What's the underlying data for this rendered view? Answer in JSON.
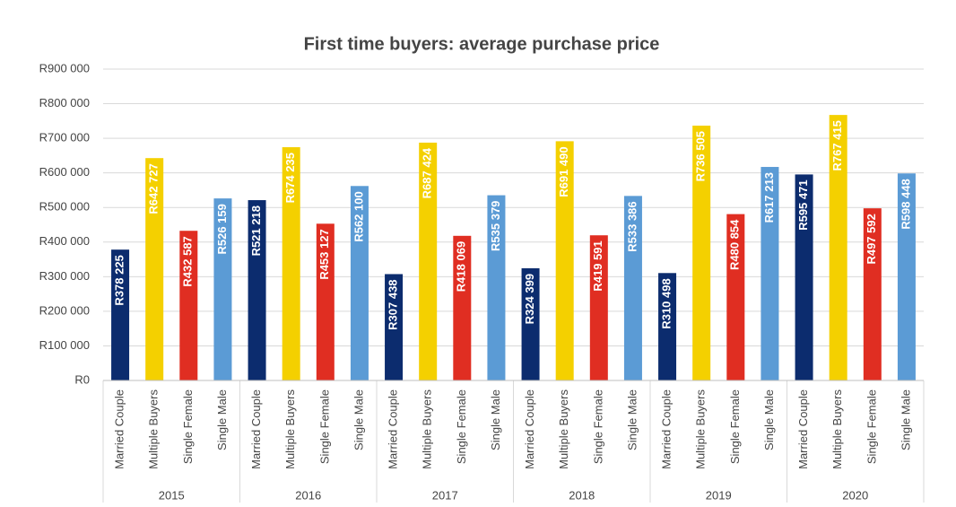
{
  "chart_data": {
    "type": "grouped_bar",
    "title": "First time buyers: average purchase price",
    "categories": [
      "2015",
      "2016",
      "2017",
      "2018",
      "2019",
      "2020"
    ],
    "series": [
      {
        "name": "Married Couple",
        "color": "#0c2c6e",
        "values": [
          378225,
          521218,
          307438,
          324399,
          310498,
          595471
        ],
        "value_labels": [
          "R378 225",
          "R521 218",
          "R307 438",
          "R324 399",
          "R310 498",
          "R595 471"
        ]
      },
      {
        "name": "Multiple Buyers",
        "color": "#f4d000",
        "values": [
          642727,
          674235,
          687424,
          691490,
          736505,
          767415
        ],
        "value_labels": [
          "R642 727",
          "R674 235",
          "R687 424",
          "R691 490",
          "R736 505",
          "R767 415"
        ]
      },
      {
        "name": "Single Female",
        "color": "#e02e22",
        "values": [
          432587,
          453127,
          418069,
          419591,
          480854,
          497592
        ],
        "value_labels": [
          "R432 587",
          "R453 127",
          "R418 069",
          "R419 591",
          "R480 854",
          "R497 592"
        ]
      },
      {
        "name": "Single Male",
        "color": "#5b9bd5",
        "values": [
          526159,
          562100,
          535379,
          533386,
          617213,
          598448
        ],
        "value_labels": [
          "R526 159",
          "R562 100",
          "R535 379",
          "R533 386",
          "R617 213",
          "R598 448"
        ]
      }
    ],
    "ylim": [
      0,
      900000
    ],
    "yticks": [
      {
        "value": 0,
        "label": "R0"
      },
      {
        "value": 100000,
        "label": "R100 000"
      },
      {
        "value": 200000,
        "label": "R200 000"
      },
      {
        "value": 300000,
        "label": "R300 000"
      },
      {
        "value": 400000,
        "label": "R400 000"
      },
      {
        "value": 500000,
        "label": "R500 000"
      },
      {
        "value": 600000,
        "label": "R600 000"
      },
      {
        "value": 700000,
        "label": "R700 000"
      },
      {
        "value": 800000,
        "label": "R800 000"
      },
      {
        "value": 900000,
        "label": "R900 000"
      }
    ],
    "grid": true
  }
}
